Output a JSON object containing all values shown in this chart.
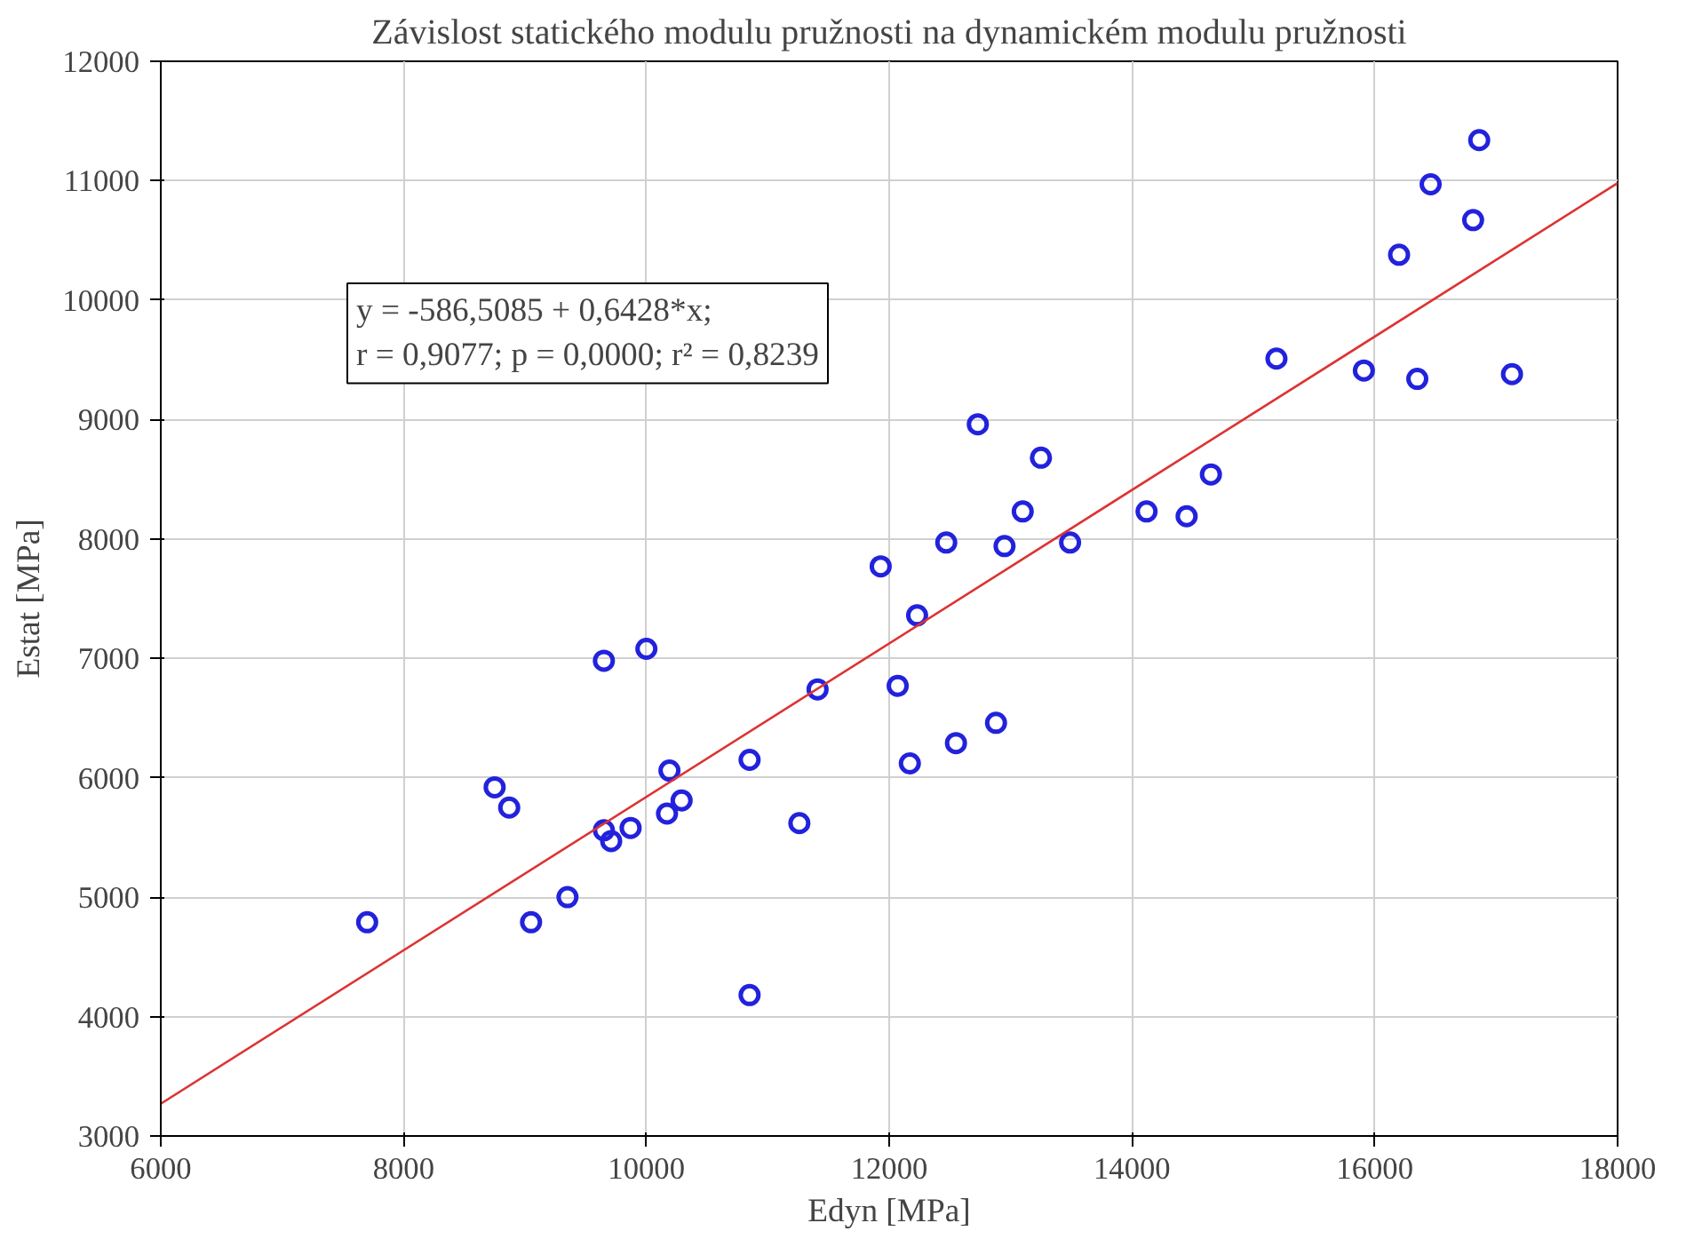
{
  "chart_data": {
    "type": "scatter",
    "title": "Závislost statického modulu pružnosti na dynamickém modulu pružnosti",
    "xlabel": "Edyn [MPa]",
    "ylabel": "Estat [MPa]",
    "xlim": [
      6000,
      18000
    ],
    "ylim": [
      3000,
      12000
    ],
    "xticks": [
      6000,
      8000,
      10000,
      12000,
      14000,
      16000,
      18000
    ],
    "yticks": [
      3000,
      4000,
      5000,
      6000,
      7000,
      8000,
      9000,
      10000,
      11000,
      12000
    ],
    "grid": true,
    "annotations": [
      "y = -586,5085 + 0,6428*x;",
      "r = 0,9077; p = 0,0000; r² = 0,8239"
    ],
    "series": [
      {
        "color": "#2222dd",
        "marker": "circle",
        "x": [
          7700,
          8750,
          8870,
          9050,
          9350,
          9650,
          9650,
          9710,
          9870,
          10000,
          10170,
          10190,
          10290,
          10850,
          10850,
          11260,
          11410,
          11930,
          12070,
          12230,
          12170,
          12470,
          12550,
          12730,
          12880,
          12950,
          13100,
          13250,
          13490,
          14120,
          14450,
          14650,
          15190,
          15910,
          16200,
          16350,
          16460,
          16810,
          16860,
          17130
        ],
        "values": [
          4790,
          5920,
          5750,
          4790,
          5000,
          5560,
          6980,
          5470,
          5580,
          7080,
          5700,
          6060,
          5810,
          6150,
          4180,
          5620,
          6740,
          7770,
          6770,
          7360,
          6120,
          7970,
          6290,
          8960,
          6460,
          7940,
          8230,
          8680,
          7970,
          8230,
          8190,
          8540,
          9510,
          9410,
          10380,
          9340,
          10970,
          10670,
          11340,
          9380
        ]
      },
      {
        "type": "line",
        "color": "#dd3333",
        "x": [
          6000,
          18000
        ],
        "values": [
          3270,
          10980
        ]
      }
    ]
  }
}
